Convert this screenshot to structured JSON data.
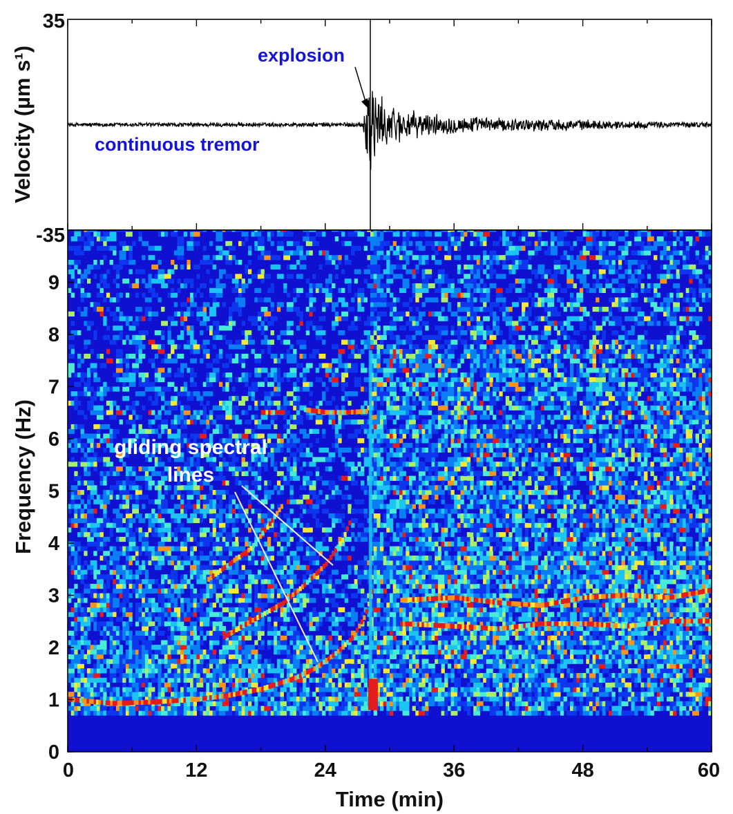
{
  "chart_data": [
    {
      "type": "line",
      "panel": "seismogram",
      "ylabel": "Velocity (µm s¹)",
      "ylim": [
        -35,
        35
      ],
      "ytick_labels": [
        "35",
        "-35"
      ],
      "xlim": [
        0,
        60
      ],
      "grid": false,
      "series": [
        {
          "color": "#000000",
          "x": [
            0,
            10,
            20,
            27.5,
            28.2,
            28.4,
            28.8,
            29.5,
            30.5,
            32,
            35,
            40,
            45,
            50,
            55,
            60
          ],
          "amp": [
            0.8,
            0.8,
            0.8,
            0.9,
            26,
            22,
            11,
            9,
            7,
            5,
            3.5,
            2.5,
            2.2,
            1.6,
            1.2,
            1.0
          ]
        }
      ],
      "annotations": [
        {
          "text": "explosion",
          "x": 28.2,
          "y": 0
        },
        {
          "text": "continuous tremor",
          "x": 8,
          "y": 0
        }
      ]
    },
    {
      "type": "heatmap",
      "panel": "spectrogram",
      "xlabel": "Time (min)",
      "ylabel": "Frequency (Hz)",
      "xlim": [
        0,
        60
      ],
      "ylim": [
        0,
        10
      ],
      "xticks": [
        0,
        12,
        24,
        36,
        48,
        60
      ],
      "xtick_labels": [
        "0",
        "12",
        "24",
        "36",
        "48",
        "60"
      ],
      "yticks": [
        0,
        1,
        2,
        3,
        4,
        5,
        6,
        7,
        8,
        9
      ],
      "ytick_labels": [
        "0",
        "1",
        "2",
        "3",
        "4",
        "5",
        "6",
        "7",
        "8",
        "9"
      ],
      "colormap": [
        "#1010d0",
        "#0d36ee",
        "#0a7ef5",
        "#1cc4f5",
        "#48ecd6",
        "#a8f06a",
        "#f6e838",
        "#f7941d",
        "#e51c1c",
        "#b00000"
      ],
      "background_color": "#1010d0",
      "gliding_lines": [
        {
          "x": [
            0,
            4,
            8,
            12,
            15,
            18,
            21,
            23,
            25,
            26.5,
            27.6,
            28.2
          ],
          "y": [
            1.0,
            0.92,
            0.95,
            1.0,
            1.08,
            1.2,
            1.4,
            1.6,
            1.9,
            2.2,
            2.6,
            3.0
          ]
        },
        {
          "x": [
            14.5,
            17,
            20,
            22,
            24,
            25.5,
            26.2
          ],
          "y": [
            2.2,
            2.5,
            2.85,
            3.2,
            3.6,
            4.05,
            4.4
          ]
        },
        {
          "x": [
            13,
            15,
            17,
            18.5,
            20
          ],
          "y": [
            3.3,
            3.6,
            3.9,
            4.3,
            4.75
          ]
        },
        {
          "x": [
            18,
            20
          ],
          "y": [
            6.5,
            6.5
          ]
        },
        {
          "x": [
            22,
            24,
            26,
            27.8
          ],
          "y": [
            6.55,
            6.5,
            6.5,
            6.52
          ]
        },
        {
          "x": [
            31,
            36,
            40,
            44,
            48,
            52,
            56,
            60
          ],
          "y": [
            2.45,
            2.4,
            2.35,
            2.45,
            2.45,
            2.4,
            2.5,
            2.5
          ]
        },
        {
          "x": [
            31,
            36,
            40,
            44,
            48,
            52,
            56,
            60
          ],
          "y": [
            2.9,
            2.95,
            2.85,
            2.8,
            2.95,
            3.0,
            2.95,
            3.1
          ]
        }
      ],
      "annotations": [
        {
          "text": "gliding spectral",
          "x": 10,
          "y": 5.9
        },
        {
          "text": "lines",
          "x": 10,
          "y": 5.4
        }
      ]
    }
  ],
  "labels": {
    "explosion": "explosion",
    "continuous_tremor": "continuous tremor",
    "gliding_line1": "gliding spectral",
    "gliding_line2": "lines"
  }
}
